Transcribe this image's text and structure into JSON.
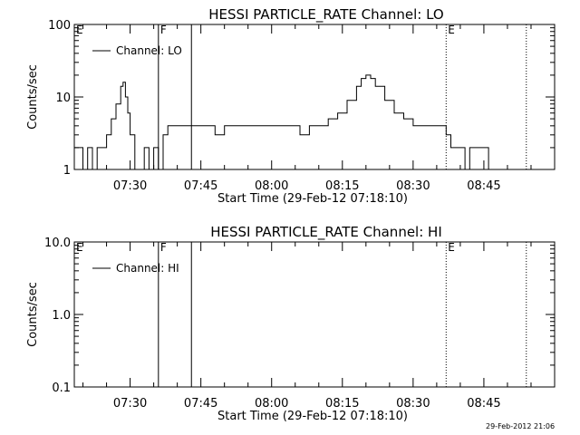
{
  "timestamp": "29-Feb-2012 21:06",
  "chart_data": [
    {
      "type": "line",
      "title": "HESSI PARTICLE_RATE Channel: LO",
      "xlabel": "Start Time (29-Feb-12 07:18:10)",
      "ylabel": "Counts/sec",
      "yscale": "log",
      "ylim": [
        1,
        100
      ],
      "yticks": [
        "1",
        "10",
        "100"
      ],
      "xlim": [
        "07:18:10",
        "09:00:00"
      ],
      "xticks": [
        "07:30",
        "07:45",
        "08:00",
        "08:15",
        "08:30",
        "08:45"
      ],
      "legend": {
        "position": "top-left",
        "entries": [
          "Channel: LO"
        ]
      },
      "markers": [
        {
          "label": "E",
          "time": "07:18:10",
          "style": "none"
        },
        {
          "label": "F",
          "time": "07:36:00",
          "style": "solid"
        },
        {
          "label": "",
          "time": "07:43:00",
          "style": "solid"
        },
        {
          "label": "E",
          "time": "08:37:00",
          "style": "dotted"
        },
        {
          "label": "",
          "time": "08:54:00",
          "style": "dotted"
        }
      ],
      "series": [
        {
          "name": "Channel: LO",
          "x": [
            "07:18:10",
            "07:20:00",
            "07:21:00",
            "07:22:00",
            "07:23:00",
            "07:24:00",
            "07:25:00",
            "07:26:00",
            "07:27:00",
            "07:28:00",
            "07:28:30",
            "07:29:00",
            "07:29:30",
            "07:30:00",
            "07:31:00",
            "07:32:00",
            "07:33:00",
            "07:34:00",
            "07:35:00",
            "07:36:00",
            "07:37:00",
            "07:38:00",
            "07:40:00",
            "07:42:00",
            "07:44:00",
            "07:46:00",
            "07:48:00",
            "07:50:00",
            "07:52:00",
            "07:54:00",
            "07:56:00",
            "07:58:00",
            "08:00:00",
            "08:02:00",
            "08:04:00",
            "08:06:00",
            "08:08:00",
            "08:10:00",
            "08:12:00",
            "08:14:00",
            "08:16:00",
            "08:18:00",
            "08:19:00",
            "08:20:00",
            "08:21:00",
            "08:22:00",
            "08:24:00",
            "08:26:00",
            "08:28:00",
            "08:30:00",
            "08:32:00",
            "08:34:00",
            "08:36:00",
            "08:37:00",
            "08:38:00",
            "08:39:00",
            "08:40:00",
            "08:41:00",
            "08:42:00",
            "08:44:00",
            "08:46:00",
            "08:48:00",
            "08:50:00",
            "08:52:00",
            "08:54:00",
            "08:56:00",
            "08:58:00"
          ],
          "y": [
            2,
            1,
            2,
            1,
            2,
            2,
            3,
            5,
            8,
            14,
            16,
            10,
            6,
            3,
            1,
            1,
            2,
            1,
            2,
            1,
            3,
            4,
            4,
            4,
            4,
            4,
            3,
            4,
            4,
            4,
            4,
            4,
            4,
            4,
            4,
            3,
            4,
            4,
            5,
            6,
            9,
            14,
            18,
            20,
            18,
            14,
            9,
            6,
            5,
            4,
            4,
            4,
            4,
            3,
            2,
            2,
            2,
            1,
            2,
            2,
            1,
            1,
            1,
            1,
            1,
            1,
            1
          ]
        }
      ]
    },
    {
      "type": "line",
      "title": "HESSI PARTICLE_RATE Channel: HI",
      "xlabel": "Start Time (29-Feb-12 07:18:10)",
      "ylabel": "Counts/sec",
      "yscale": "log",
      "ylim": [
        0.1,
        10
      ],
      "yticks": [
        "0.1",
        "1.0",
        "10.0"
      ],
      "xlim": [
        "07:18:10",
        "09:00:00"
      ],
      "xticks": [
        "07:30",
        "07:45",
        "08:00",
        "08:15",
        "08:30",
        "08:45"
      ],
      "legend": {
        "position": "top-left",
        "entries": [
          "Channel: HI"
        ]
      },
      "markers": [
        {
          "label": "E",
          "time": "07:18:10",
          "style": "none"
        },
        {
          "label": "F",
          "time": "07:36:00",
          "style": "solid"
        },
        {
          "label": "",
          "time": "07:43:00",
          "style": "solid"
        },
        {
          "label": "E",
          "time": "08:37:00",
          "style": "dotted"
        },
        {
          "label": "",
          "time": "08:54:00",
          "style": "dotted"
        }
      ],
      "series": [
        {
          "name": "Channel: HI",
          "x": [],
          "y": []
        }
      ]
    }
  ]
}
